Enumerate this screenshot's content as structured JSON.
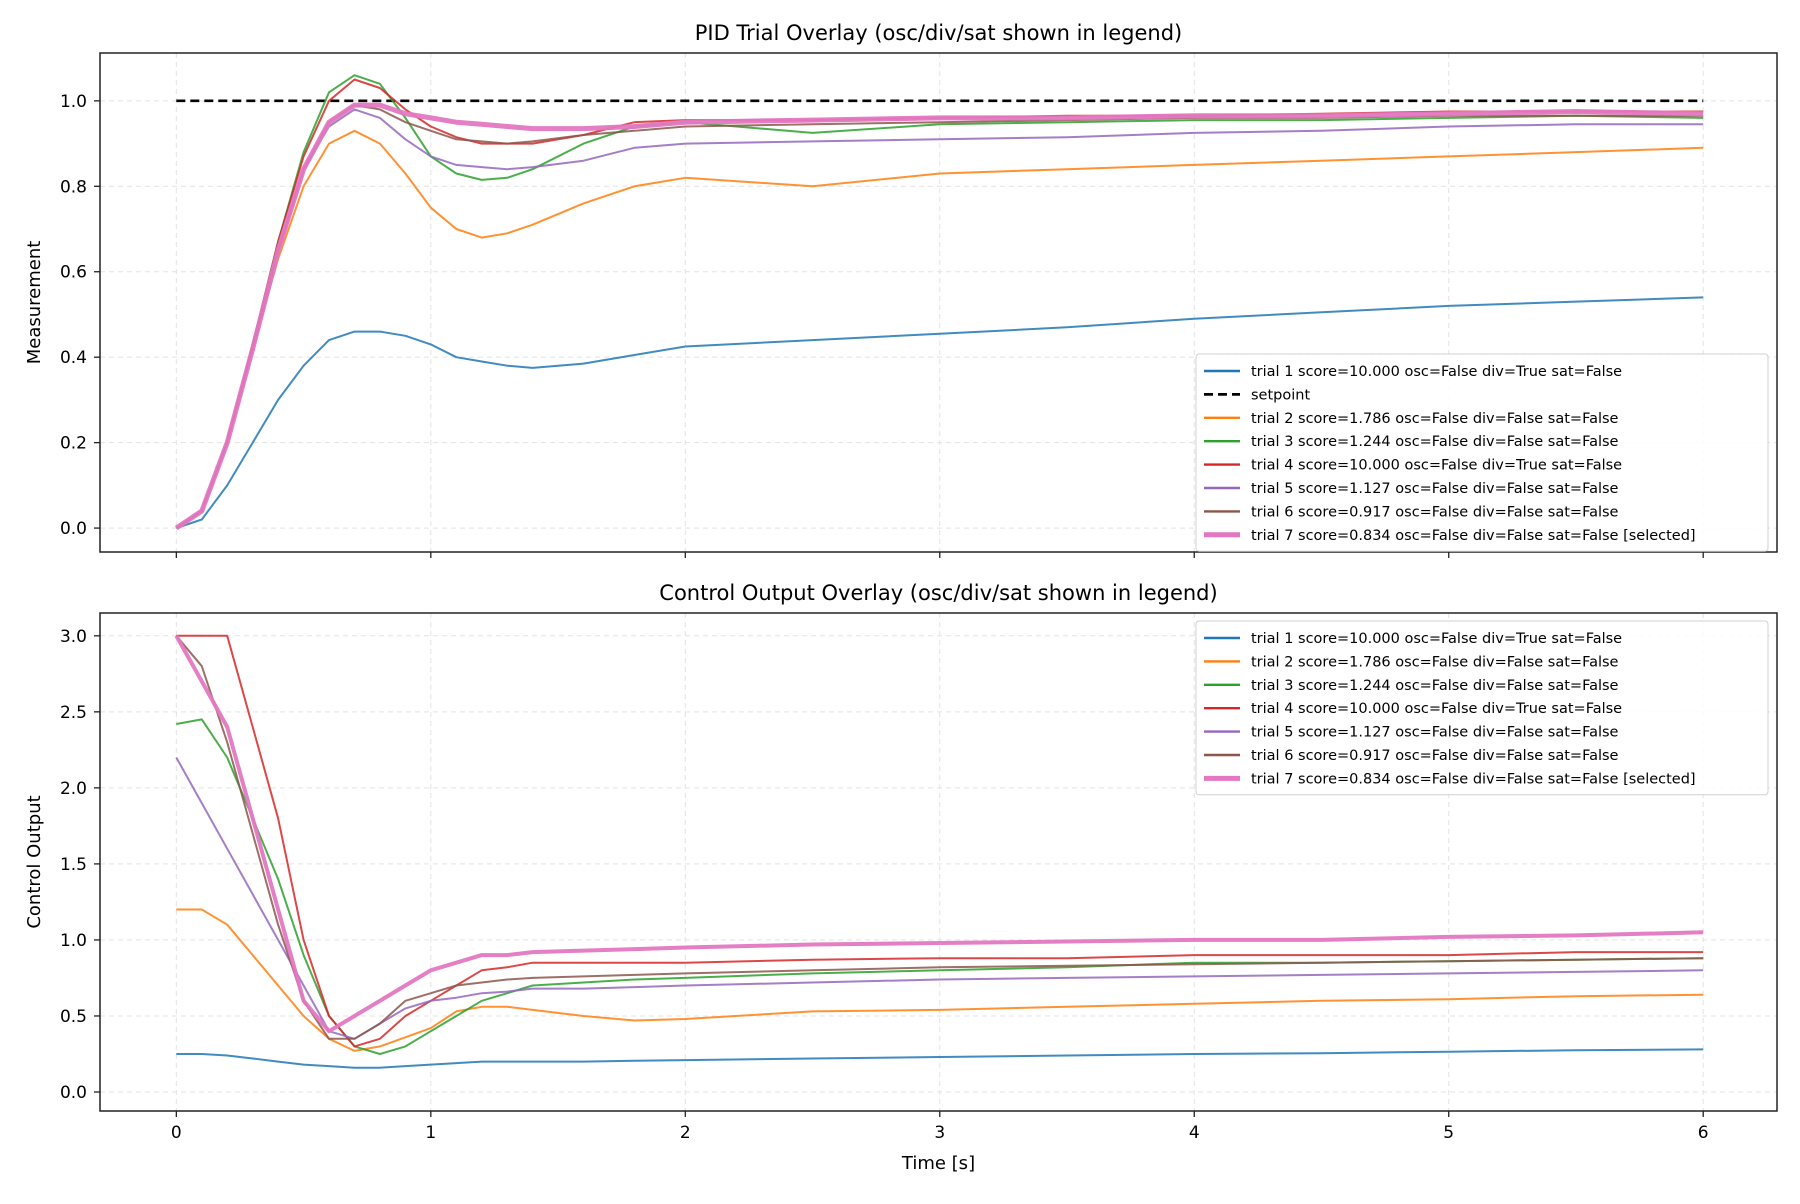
{
  "chart_data": [
    {
      "type": "line",
      "title": "PID Trial Overlay (osc/div/sat shown in legend)",
      "xlabel": "",
      "ylabel": "Measurement",
      "xlim": [
        -0.3,
        6.29
      ],
      "ylim": [
        -0.056,
        1.112
      ],
      "xticks": [
        "0",
        "1",
        "2",
        "3",
        "4",
        "5",
        "6"
      ],
      "yticks": [
        "0.0",
        "0.2",
        "0.4",
        "0.6",
        "0.8",
        "1.0"
      ],
      "grid": true,
      "legend_position": "lower-right",
      "x": [
        0,
        0.1,
        0.2,
        0.3,
        0.4,
        0.5,
        0.6,
        0.7,
        0.8,
        0.9,
        1.0,
        1.1,
        1.2,
        1.3,
        1.4,
        1.6,
        1.8,
        2.0,
        2.5,
        3.0,
        3.5,
        4.0,
        4.5,
        5.0,
        5.5,
        6.0
      ],
      "series": [
        {
          "name": "trial 1 score=10.000 osc=False div=True sat=False",
          "color": "#1f77b4",
          "style": "solid",
          "values": [
            0,
            0.02,
            0.1,
            0.2,
            0.3,
            0.38,
            0.44,
            0.46,
            0.46,
            0.45,
            0.43,
            0.4,
            0.39,
            0.38,
            0.375,
            0.385,
            0.405,
            0.425,
            0.44,
            0.455,
            0.47,
            0.49,
            0.505,
            0.52,
            0.53,
            0.54
          ]
        },
        {
          "name": "setpoint",
          "color": "#000000",
          "style": "dashed",
          "values": [
            1,
            1,
            1,
            1,
            1,
            1,
            1,
            1,
            1,
            1,
            1,
            1,
            1,
            1,
            1,
            1,
            1,
            1,
            1,
            1,
            1,
            1,
            1,
            1,
            1,
            1
          ]
        },
        {
          "name": "trial 2 score=1.786 osc=False div=False sat=False",
          "color": "#ff7f0e",
          "style": "solid",
          "values": [
            0,
            0.04,
            0.2,
            0.42,
            0.63,
            0.8,
            0.9,
            0.93,
            0.9,
            0.83,
            0.75,
            0.7,
            0.68,
            0.69,
            0.71,
            0.76,
            0.8,
            0.82,
            0.8,
            0.83,
            0.84,
            0.85,
            0.86,
            0.87,
            0.88,
            0.89
          ]
        },
        {
          "name": "trial 3 score=1.244 osc=False div=False sat=False",
          "color": "#2ca02c",
          "style": "solid",
          "values": [
            0,
            0.04,
            0.2,
            0.43,
            0.67,
            0.88,
            1.02,
            1.06,
            1.04,
            0.96,
            0.87,
            0.83,
            0.815,
            0.82,
            0.84,
            0.9,
            0.94,
            0.95,
            0.925,
            0.945,
            0.95,
            0.955,
            0.955,
            0.96,
            0.965,
            0.96
          ]
        },
        {
          "name": "trial 4 score=10.000 osc=False div=True sat=False",
          "color": "#d62728",
          "style": "solid",
          "values": [
            0,
            0.04,
            0.2,
            0.43,
            0.67,
            0.87,
            1.0,
            1.05,
            1.03,
            0.98,
            0.94,
            0.915,
            0.9,
            0.9,
            0.9,
            0.92,
            0.95,
            0.955,
            0.955,
            0.96,
            0.965,
            0.965,
            0.97,
            0.975,
            0.975,
            0.975
          ]
        },
        {
          "name": "trial 5 score=1.127 osc=False div=False sat=False",
          "color": "#9467bd",
          "style": "solid",
          "values": [
            0,
            0.04,
            0.2,
            0.42,
            0.65,
            0.84,
            0.94,
            0.98,
            0.96,
            0.91,
            0.87,
            0.85,
            0.845,
            0.84,
            0.845,
            0.86,
            0.89,
            0.9,
            0.905,
            0.91,
            0.915,
            0.925,
            0.93,
            0.94,
            0.945,
            0.945
          ]
        },
        {
          "name": "trial 6 score=0.917 osc=False div=False sat=False",
          "color": "#8c564b",
          "style": "solid",
          "values": [
            0,
            0.04,
            0.2,
            0.42,
            0.65,
            0.84,
            0.95,
            0.99,
            0.98,
            0.95,
            0.93,
            0.91,
            0.905,
            0.9,
            0.905,
            0.92,
            0.93,
            0.94,
            0.945,
            0.95,
            0.955,
            0.96,
            0.96,
            0.965,
            0.965,
            0.965
          ]
        },
        {
          "name": "trial 7 score=0.834 osc=False div=False sat=False [selected]",
          "color": "#e377c2",
          "style": "thick",
          "values": [
            0,
            0.04,
            0.2,
            0.42,
            0.65,
            0.84,
            0.95,
            0.99,
            0.99,
            0.97,
            0.96,
            0.95,
            0.945,
            0.94,
            0.935,
            0.935,
            0.94,
            0.95,
            0.955,
            0.96,
            0.96,
            0.965,
            0.965,
            0.97,
            0.975,
            0.97
          ]
        }
      ]
    },
    {
      "type": "line",
      "title": "Control Output Overlay (osc/div/sat shown in legend)",
      "xlabel": "Time [s]",
      "ylabel": "Control Output",
      "xlim": [
        -0.3,
        6.29
      ],
      "ylim": [
        -0.125,
        3.15
      ],
      "xticks": [
        "0",
        "1",
        "2",
        "3",
        "4",
        "5",
        "6"
      ],
      "yticks": [
        "0.0",
        "0.5",
        "1.0",
        "1.5",
        "2.0",
        "2.5",
        "3.0"
      ],
      "grid": true,
      "legend_position": "upper-right",
      "x": [
        0,
        0.1,
        0.2,
        0.3,
        0.4,
        0.5,
        0.6,
        0.7,
        0.8,
        0.9,
        1.0,
        1.1,
        1.2,
        1.3,
        1.4,
        1.6,
        1.8,
        2.0,
        2.5,
        3.0,
        3.5,
        4.0,
        4.5,
        5.0,
        5.5,
        6.0
      ],
      "series": [
        {
          "name": "trial 1 score=10.000 osc=False div=True sat=False",
          "color": "#1f77b4",
          "style": "solid",
          "values": [
            0.25,
            0.25,
            0.24,
            0.22,
            0.2,
            0.18,
            0.17,
            0.16,
            0.16,
            0.17,
            0.18,
            0.19,
            0.2,
            0.2,
            0.2,
            0.2,
            0.205,
            0.21,
            0.22,
            0.23,
            0.24,
            0.25,
            0.255,
            0.265,
            0.275,
            0.28
          ]
        },
        {
          "name": "trial 2 score=1.786 osc=False div=False sat=False",
          "color": "#ff7f0e",
          "style": "solid",
          "values": [
            1.2,
            1.2,
            1.1,
            0.9,
            0.7,
            0.5,
            0.35,
            0.27,
            0.3,
            0.36,
            0.42,
            0.53,
            0.56,
            0.56,
            0.54,
            0.5,
            0.47,
            0.48,
            0.53,
            0.54,
            0.56,
            0.58,
            0.6,
            0.61,
            0.63,
            0.64
          ]
        },
        {
          "name": "trial 3 score=1.244 osc=False div=False sat=False",
          "color": "#2ca02c",
          "style": "solid",
          "values": [
            2.42,
            2.45,
            2.2,
            1.8,
            1.4,
            0.9,
            0.5,
            0.3,
            0.25,
            0.3,
            0.4,
            0.5,
            0.6,
            0.65,
            0.7,
            0.72,
            0.74,
            0.75,
            0.78,
            0.8,
            0.82,
            0.85,
            0.85,
            0.86,
            0.87,
            0.88
          ]
        },
        {
          "name": "trial 4 score=10.000 osc=False div=True sat=False",
          "color": "#d62728",
          "style": "solid",
          "values": [
            3.0,
            3.0,
            3.0,
            2.4,
            1.8,
            1.0,
            0.5,
            0.3,
            0.35,
            0.5,
            0.6,
            0.7,
            0.8,
            0.82,
            0.85,
            0.85,
            0.85,
            0.85,
            0.87,
            0.88,
            0.88,
            0.9,
            0.9,
            0.9,
            0.92,
            0.92
          ]
        },
        {
          "name": "trial 5 score=1.127 osc=False div=False sat=False",
          "color": "#9467bd",
          "style": "solid",
          "values": [
            2.2,
            1.9,
            1.6,
            1.3,
            1.0,
            0.7,
            0.4,
            0.35,
            0.45,
            0.55,
            0.6,
            0.62,
            0.65,
            0.66,
            0.68,
            0.68,
            0.69,
            0.7,
            0.72,
            0.74,
            0.75,
            0.76,
            0.77,
            0.78,
            0.79,
            0.8
          ]
        },
        {
          "name": "trial 6 score=0.917 osc=False div=False sat=False",
          "color": "#8c564b",
          "style": "solid",
          "values": [
            3.0,
            2.8,
            2.3,
            1.7,
            1.1,
            0.6,
            0.35,
            0.35,
            0.45,
            0.6,
            0.65,
            0.7,
            0.72,
            0.74,
            0.75,
            0.76,
            0.77,
            0.78,
            0.8,
            0.82,
            0.83,
            0.84,
            0.85,
            0.86,
            0.87,
            0.88
          ]
        },
        {
          "name": "trial 7 score=0.834 osc=False div=False sat=False [selected]",
          "color": "#e377c2",
          "style": "thick",
          "values": [
            3.0,
            2.7,
            2.4,
            1.8,
            1.2,
            0.6,
            0.4,
            0.5,
            0.6,
            0.7,
            0.8,
            0.85,
            0.9,
            0.9,
            0.92,
            0.93,
            0.94,
            0.95,
            0.97,
            0.98,
            0.99,
            1.0,
            1.0,
            1.02,
            1.03,
            1.05
          ]
        }
      ]
    }
  ]
}
